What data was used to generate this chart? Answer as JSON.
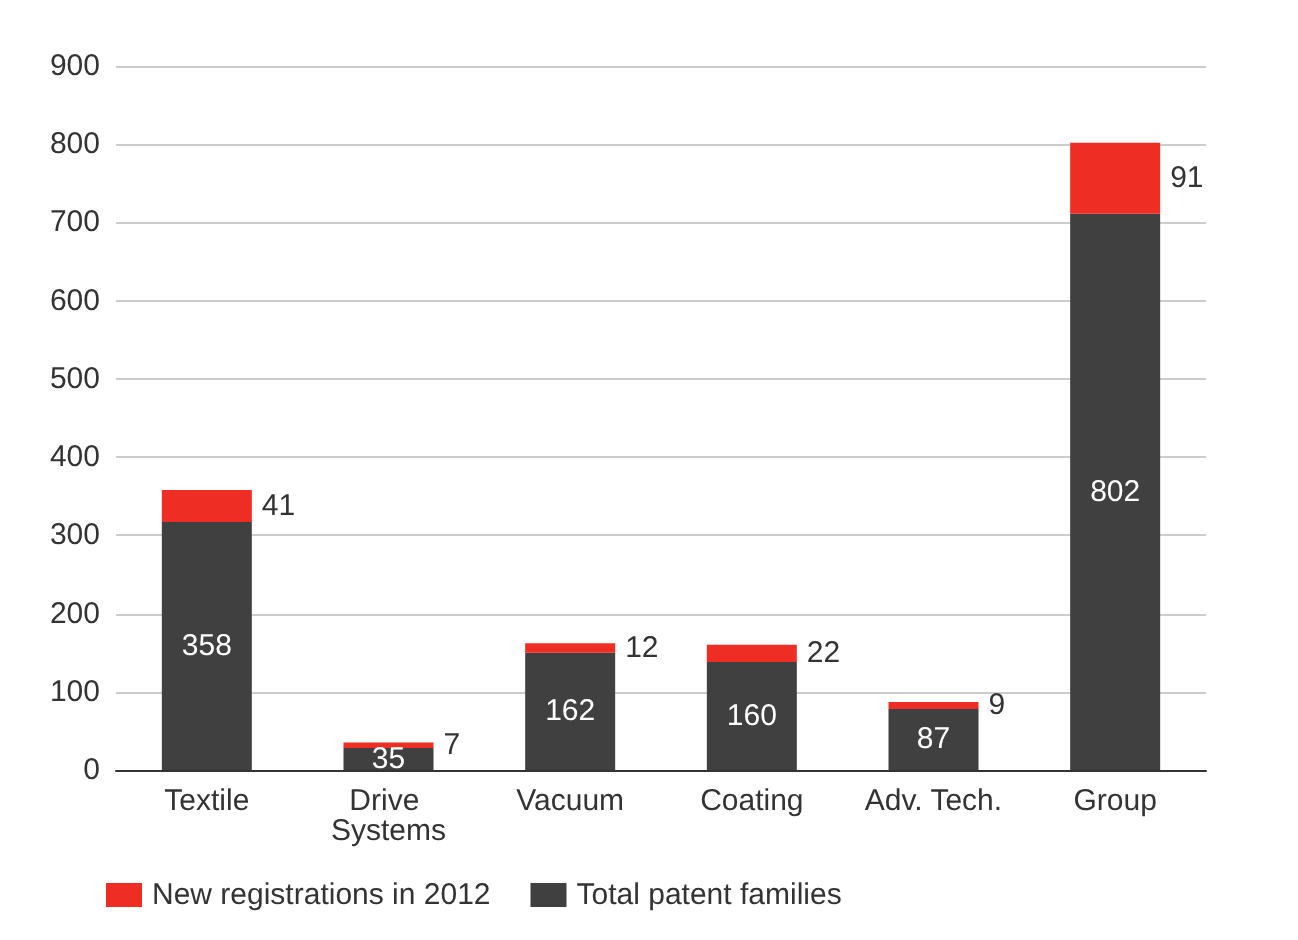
{
  "chart_data": {
    "type": "bar",
    "stacked": true,
    "categories": [
      "Textile",
      "Drive Systems",
      "Vacuum",
      "Coating",
      "Adv. Tech.",
      "Group"
    ],
    "series": [
      {
        "name": "Total patent families",
        "color": "#404040",
        "values": [
          317,
          28,
          150,
          138,
          78,
          711
        ]
      },
      {
        "name": "New registrations in 2012",
        "color": "#ee2e24",
        "values": [
          41,
          7,
          12,
          22,
          9,
          91
        ],
        "value_labels": [
          "41",
          "7",
          "12",
          "22",
          "9",
          "91"
        ]
      }
    ],
    "totals": [
      "358",
      "35",
      "162",
      "160",
      "87",
      "802"
    ],
    "ylim": [
      0,
      900
    ],
    "yticks": [
      0,
      100,
      200,
      300,
      400,
      500,
      600,
      700,
      800,
      900
    ],
    "grid": "y",
    "legend": "bottom"
  }
}
